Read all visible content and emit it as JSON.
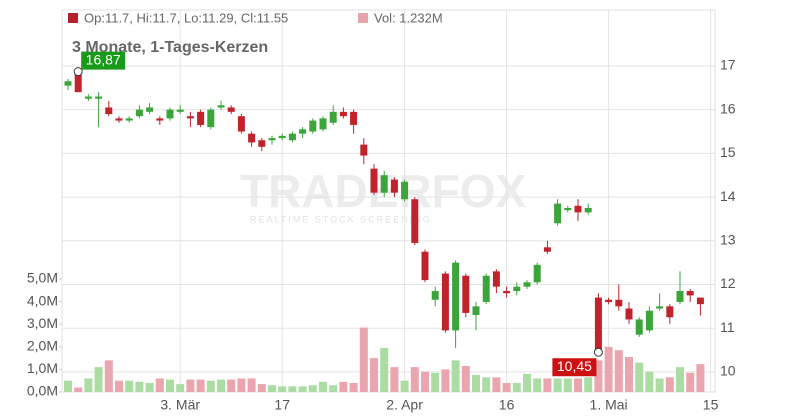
{
  "chart_data": {
    "type": "candlestick",
    "subtitle": "3 Monate, 1-Tages-Kerzen",
    "watermark": [
      "TRADERFOX",
      "REALTIME STOCK SCREENING"
    ],
    "categories": [
      null,
      null,
      null,
      null,
      null,
      null,
      null,
      null,
      null,
      null,
      null,
      "3. Mär",
      null,
      null,
      null,
      null,
      null,
      null,
      null,
      null,
      null,
      "17",
      null,
      null,
      null,
      null,
      null,
      null,
      null,
      null,
      null,
      null,
      null,
      "2. Apr",
      null,
      null,
      null,
      null,
      null,
      null,
      null,
      null,
      null,
      "16",
      null,
      null,
      null,
      null,
      null,
      null,
      null,
      null,
      null,
      "1. Mai",
      null,
      null,
      null,
      null,
      null,
      null,
      null,
      null,
      null,
      "15"
    ],
    "series": [
      {
        "name": "Op:11.7, Hi:11.7, Lo:11.29, Cl:11.55",
        "color": "#b3202a",
        "color_up": "#3ba53b",
        "color_down": "#c0232b",
        "open": [
          16.55,
          16.85,
          16.25,
          16.25,
          16.05,
          15.8,
          15.75,
          15.85,
          15.95,
          15.8,
          15.8,
          15.95,
          15.85,
          15.95,
          15.6,
          16.05,
          16.05,
          15.85,
          15.45,
          15.3,
          15.3,
          15.35,
          15.3,
          15.45,
          15.5,
          15.55,
          15.7,
          15.95,
          15.95,
          15.2,
          14.65,
          14.1,
          14.4,
          13.95,
          13.95,
          12.75,
          11.65,
          12.25,
          10.95,
          12.2,
          11.3,
          11.6,
          12.3,
          11.85,
          11.85,
          11.95,
          12.05,
          12.85,
          13.4,
          13.7,
          13.8,
          13.65,
          11.7,
          11.65,
          11.65,
          11.45,
          10.85,
          10.95,
          11.45,
          11.5,
          11.6,
          11.85,
          11.7,
          null
        ],
        "high": [
          16.7,
          16.87,
          16.35,
          16.4,
          16.2,
          15.85,
          15.85,
          16.1,
          16.15,
          15.85,
          16.05,
          16.1,
          15.95,
          16.0,
          16.05,
          16.2,
          16.1,
          15.9,
          15.5,
          15.35,
          15.4,
          15.45,
          15.5,
          15.6,
          15.8,
          15.85,
          16.1,
          16.05,
          16.0,
          15.35,
          14.75,
          14.6,
          14.45,
          14.4,
          14.0,
          12.8,
          11.95,
          12.3,
          12.55,
          12.25,
          11.6,
          12.25,
          12.35,
          11.95,
          12.05,
          12.1,
          12.5,
          13.0,
          13.95,
          13.8,
          13.95,
          13.85,
          11.8,
          11.7,
          12.0,
          11.6,
          11.25,
          11.5,
          11.8,
          11.55,
          12.3,
          11.9,
          11.7,
          null
        ],
        "low": [
          16.45,
          16.4,
          16.2,
          15.6,
          15.85,
          15.7,
          15.7,
          15.8,
          15.9,
          15.65,
          15.75,
          15.9,
          15.6,
          15.6,
          15.55,
          16.0,
          15.9,
          15.45,
          15.15,
          15.05,
          15.2,
          15.3,
          15.25,
          15.35,
          15.45,
          15.5,
          15.65,
          15.8,
          15.45,
          14.75,
          14.05,
          14.0,
          14.0,
          13.9,
          12.9,
          12.05,
          11.5,
          10.9,
          10.55,
          11.25,
          10.95,
          11.55,
          11.8,
          11.7,
          11.75,
          11.9,
          12.0,
          12.7,
          13.35,
          13.65,
          13.45,
          13.6,
          10.45,
          11.55,
          11.4,
          11.1,
          10.8,
          10.9,
          11.4,
          11.1,
          11.55,
          11.6,
          11.29,
          null
        ],
        "close": [
          16.65,
          16.4,
          16.3,
          16.3,
          15.9,
          15.75,
          15.8,
          16.0,
          16.05,
          15.75,
          16.0,
          16.0,
          15.8,
          15.65,
          16.0,
          16.1,
          15.95,
          15.5,
          15.25,
          15.15,
          15.35,
          15.4,
          15.45,
          15.55,
          15.75,
          15.8,
          15.95,
          15.85,
          15.65,
          14.95,
          14.1,
          14.5,
          14.1,
          14.35,
          12.95,
          12.1,
          11.85,
          10.95,
          12.5,
          11.35,
          11.5,
          12.2,
          11.95,
          11.8,
          11.95,
          12.05,
          12.45,
          12.75,
          13.85,
          13.75,
          13.65,
          13.75,
          10.45,
          11.6,
          11.5,
          11.2,
          11.2,
          11.4,
          11.5,
          11.25,
          11.85,
          11.75,
          11.55,
          null
        ],
        "max_label": {
          "value": 16.87,
          "label": "16,87"
        },
        "min_label": {
          "value": 10.45,
          "label": "10,45"
        }
      },
      {
        "name": "Vol: 1.232M",
        "axis": "y2",
        "color": "#e8a3ad",
        "color_up": "#abdca3",
        "color_down": "#eba5ae",
        "values": [
          0.5,
          0.2,
          0.6,
          1.1,
          1.4,
          0.5,
          0.5,
          0.45,
          0.4,
          0.6,
          0.55,
          0.35,
          0.55,
          0.55,
          0.5,
          0.55,
          0.55,
          0.6,
          0.6,
          0.35,
          0.3,
          0.25,
          0.25,
          0.25,
          0.3,
          0.45,
          0.3,
          0.45,
          0.4,
          2.85,
          1.5,
          1.95,
          1.1,
          0.5,
          1.1,
          0.9,
          0.85,
          1.0,
          1.4,
          1.15,
          0.75,
          0.65,
          0.65,
          0.4,
          0.4,
          0.8,
          0.6,
          0.6,
          0.6,
          0.6,
          0.6,
          0.65,
          1.4,
          2.0,
          1.85,
          1.55,
          1.3,
          0.9,
          0.6,
          0.65,
          1.1,
          0.85,
          1.232,
          null
        ]
      }
    ],
    "ylim": [
      9.54,
      18.28
    ],
    "yticks": [
      10,
      11,
      12,
      13,
      14,
      15,
      16,
      17
    ],
    "y2lim": [
      0,
      16.9
    ],
    "y2ticks": [
      {
        "value": 0,
        "label": "0,0M"
      },
      {
        "value": 1,
        "label": "1,0M"
      },
      {
        "value": 2,
        "label": "2,0M"
      },
      {
        "value": 3,
        "label": "3,0M"
      },
      {
        "value": 4,
        "label": "4,0M"
      },
      {
        "value": 5,
        "label": "5,0M"
      }
    ],
    "grid": true
  }
}
